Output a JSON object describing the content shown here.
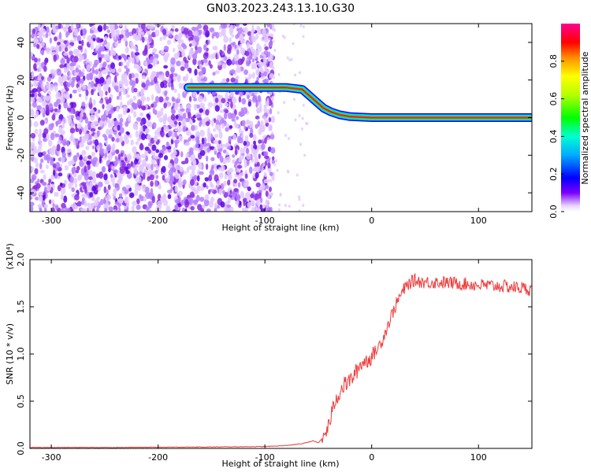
{
  "figure_title": "GN03.2023.243.13.10.G30",
  "chart_data": [
    {
      "type": "heatmap",
      "title": "GN03.2023.243.13.10.G30",
      "xlabel": "Height of straight line (km)",
      "ylabel": "Frequency (Hz)",
      "xlim": [
        -320,
        150
      ],
      "ylim": [
        -50,
        50
      ],
      "xticks": [
        -300,
        -200,
        -100,
        0,
        100
      ],
      "yticks": [
        -40,
        -20,
        0,
        20,
        40
      ],
      "colorbar": {
        "label": "Normalized spectral amplitude",
        "range": [
          0,
          1
        ],
        "ticks": [
          "0.0",
          "0.2",
          "0.4",
          "0.6",
          "0.8"
        ]
      },
      "signal_track": {
        "x": [
          -172,
          -110,
          -100,
          -80,
          -65,
          -55,
          -45,
          -38,
          -30,
          -20,
          0,
          150
        ],
        "y": [
          16,
          16,
          16,
          16,
          15,
          10,
          5,
          3,
          1.5,
          0.5,
          0,
          0
        ]
      },
      "noise_region_x": [
        -320,
        -100
      ],
      "grid": false
    },
    {
      "type": "line",
      "xlabel": "Height of straight line (km)",
      "ylabel": "SNR (10 * v/v)",
      "y_multiplier": "(x10⁴)",
      "xlim": [
        -320,
        150
      ],
      "ylim": [
        0,
        2.0
      ],
      "xticks": [
        -300,
        -200,
        -100,
        0,
        100
      ],
      "yticks": [
        "0.0",
        "0.5",
        "1.0",
        "1.5",
        "2.0"
      ],
      "series": [
        {
          "color": "#ee3b3b",
          "x": [
            -320,
            -250,
            -150,
            -100,
            -80,
            -65,
            -55,
            -50,
            -45,
            -40,
            -35,
            -30,
            -25,
            -20,
            -15,
            -10,
            -5,
            0,
            5,
            10,
            15,
            20,
            25,
            30,
            35,
            40,
            50,
            60,
            80,
            100,
            120,
            140,
            150
          ],
          "y": [
            0.01,
            0.01,
            0.015,
            0.02,
            0.03,
            0.05,
            0.08,
            0.06,
            0.12,
            0.25,
            0.48,
            0.6,
            0.68,
            0.72,
            0.8,
            0.9,
            0.93,
            0.97,
            1.05,
            1.15,
            1.3,
            1.45,
            1.58,
            1.68,
            1.75,
            1.78,
            1.76,
            1.76,
            1.75,
            1.73,
            1.72,
            1.7,
            1.68
          ]
        }
      ],
      "grid": false
    }
  ]
}
